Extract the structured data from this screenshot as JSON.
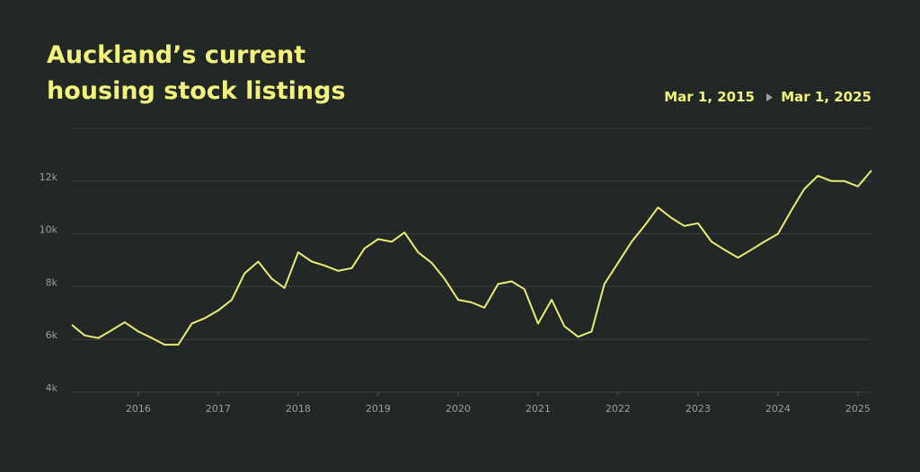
{
  "header": {
    "title_lines": [
      "Auckland’s current",
      "housing stock listings"
    ],
    "range_start": "Mar 1, 2015",
    "range_end": "Mar 1, 2025"
  },
  "chart_data": {
    "type": "line",
    "color": "#ecec74",
    "grid": true,
    "x": [
      2015.17,
      2015.33,
      2015.5,
      2015.67,
      2015.83,
      2016.0,
      2016.17,
      2016.33,
      2016.5,
      2016.67,
      2016.83,
      2017.0,
      2017.17,
      2017.33,
      2017.5,
      2017.67,
      2017.83,
      2018.0,
      2018.17,
      2018.33,
      2018.5,
      2018.67,
      2018.83,
      2019.0,
      2019.17,
      2019.33,
      2019.5,
      2019.67,
      2019.83,
      2020.0,
      2020.17,
      2020.33,
      2020.5,
      2020.67,
      2020.83,
      2021.0,
      2021.17,
      2021.33,
      2021.5,
      2021.67,
      2021.83,
      2022.0,
      2022.17,
      2022.33,
      2022.5,
      2022.67,
      2022.83,
      2023.0,
      2023.17,
      2023.33,
      2023.5,
      2023.67,
      2023.83,
      2024.0,
      2024.17,
      2024.33,
      2024.5,
      2024.67,
      2024.83,
      2025.0,
      2025.17
    ],
    "series": [
      {
        "values": [
          6550,
          6150,
          6050,
          6350,
          6650,
          6300,
          6050,
          5800,
          5800,
          6600,
          6800,
          7100,
          7500,
          8500,
          8950,
          8300,
          7950,
          9300,
          8950,
          8800,
          8600,
          8700,
          9450,
          9800,
          9700,
          10050,
          9300,
          8900,
          8300,
          7500,
          7400,
          7200,
          8100,
          8200,
          7900,
          6600,
          7500,
          6500,
          6100,
          6300,
          8100,
          8900,
          9700,
          10300,
          11000,
          10600,
          10300,
          10400,
          9700,
          9400,
          9100,
          9400,
          9700,
          10000,
          10900,
          11700,
          12200,
          12000,
          12000,
          11800,
          12400
        ]
      }
    ],
    "xlim": [
      2015.17,
      2025.17
    ],
    "xticks": [
      2016,
      2017,
      2018,
      2019,
      2020,
      2021,
      2022,
      2023,
      2024,
      2025
    ],
    "ylim": [
      4000,
      14000
    ],
    "yticks": [
      {
        "value": 4000,
        "label": "4k"
      },
      {
        "value": 6000,
        "label": "6k"
      },
      {
        "value": 8000,
        "label": "8k"
      },
      {
        "value": 10000,
        "label": "10k"
      },
      {
        "value": 12000,
        "label": "12k"
      }
    ]
  }
}
